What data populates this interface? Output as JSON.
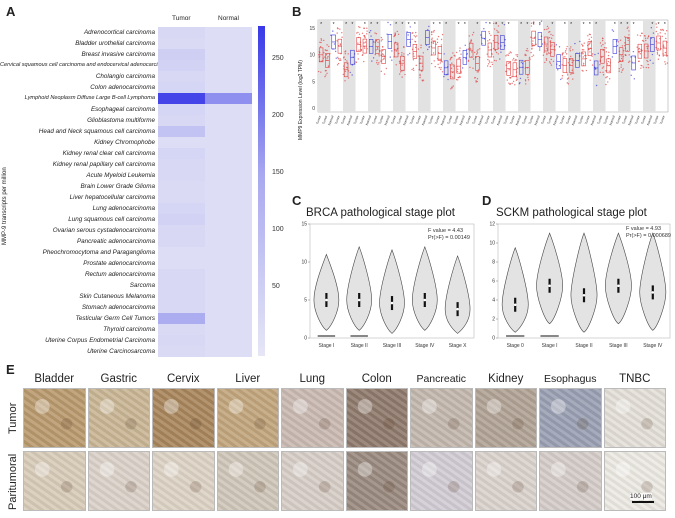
{
  "panels": {
    "a": "A",
    "b": "B",
    "c": "C",
    "d": "D",
    "e": "E"
  },
  "heatmap": {
    "columns": [
      "Tumor",
      "Normal"
    ],
    "ylabel": "MMP-9 transcripts per million",
    "colorbar_ticks": [
      "250",
      "200",
      "150",
      "100",
      "50"
    ],
    "rows": [
      {
        "label": "Adrenocortical carcinoma",
        "tumor": 25,
        "normal": 15
      },
      {
        "label": "Bladder urothelial carcinoma",
        "tumor": 20,
        "normal": 15
      },
      {
        "label": "Breast invasive carcinoma",
        "tumor": 40,
        "normal": 15
      },
      {
        "label": "Cervical squamous cell carcinoma and endocervical adenocarcinoma",
        "tumor": 35,
        "normal": 15
      },
      {
        "label": "Cholangio carcinoma",
        "tumor": 25,
        "normal": 15
      },
      {
        "label": "Colon adenocarcinoma",
        "tumor": 30,
        "normal": 15
      },
      {
        "label": "Lymphoid Neoplasm Diffuse Large B-cell Lymphoma",
        "tumor": 280,
        "normal": 150
      },
      {
        "label": "Esophageal carcinoma",
        "tumor": 30,
        "normal": 15
      },
      {
        "label": "Glioblastoma multiforme",
        "tumor": 25,
        "normal": 15
      },
      {
        "label": "Head and Neck squamous cell carcinoma",
        "tumor": 60,
        "normal": 15
      },
      {
        "label": "Kidney Chromophobe",
        "tumor": 15,
        "normal": 15
      },
      {
        "label": "Kidney renal clear cell carcinoma",
        "tumor": 30,
        "normal": 15
      },
      {
        "label": "Kidney renal papillary cell carcinoma",
        "tumor": 25,
        "normal": 15
      },
      {
        "label": "Acute Myeloid Leukemia",
        "tumor": 25,
        "normal": 15
      },
      {
        "label": "Brain Lower Grade Glioma",
        "tumor": 20,
        "normal": 15
      },
      {
        "label": "Liver hepatocellular carcinoma",
        "tumor": 20,
        "normal": 15
      },
      {
        "label": "Lung adenocarcinoma",
        "tumor": 30,
        "normal": 15
      },
      {
        "label": "Lung squamous cell carcinoma",
        "tumor": 35,
        "normal": 15
      },
      {
        "label": "Ovarian serous cystadenocarcinoma",
        "tumor": 25,
        "normal": 15
      },
      {
        "label": "Pancreatic adenocarcinoma",
        "tumor": 25,
        "normal": 15
      },
      {
        "label": "Pheochromocytoma and Paraganglioma",
        "tumor": 15,
        "normal": 15
      },
      {
        "label": "Prostate adenocarcinoma",
        "tumor": 15,
        "normal": 15
      },
      {
        "label": "Rectum adenocarcinoma",
        "tumor": 25,
        "normal": 15
      },
      {
        "label": "Sarcoma",
        "tumor": 25,
        "normal": 15
      },
      {
        "label": "Skin Cutaneous Melanoma",
        "tumor": 25,
        "normal": 15
      },
      {
        "label": "Stomach adenocarcinoma",
        "tumor": 25,
        "normal": 15
      },
      {
        "label": "Testicular Germ Cell Tumors",
        "tumor": 100,
        "normal": 15
      },
      {
        "label": "Thyroid carcinoma",
        "tumor": 20,
        "normal": 15
      },
      {
        "label": "Uterine Corpus Endometrial Carcinoma",
        "tumor": 25,
        "normal": 15
      },
      {
        "label": "Uterine Carcinosarcoma",
        "tumor": 20,
        "normal": 15
      }
    ]
  },
  "panel_b": {
    "ylabel": "MMP9 Expression Level (log2 TPM)",
    "yticks": [
      "15",
      "10",
      "5",
      "0"
    ],
    "n_groups": 56
  },
  "chart_data": [
    {
      "type": "violin",
      "title": "BRCA pathological stage plot",
      "stat_f": "F value = 4.43",
      "stat_p": "Pr(>F) = 0.00149",
      "categories": [
        "Stage I",
        "Stage II",
        "Stage III",
        "Stage IV",
        "Stage X"
      ],
      "medians": [
        5.0,
        5.0,
        4.6,
        5.0,
        3.8
      ],
      "ylim": [
        0,
        15
      ],
      "yticks": [
        "15",
        "10",
        "5",
        "0"
      ]
    },
    {
      "type": "violin",
      "title": "SCKM pathological stage plot",
      "stat_f": "F value = 4.93",
      "stat_p": "Pr(>F) = 0.000689",
      "categories": [
        "Stage 0",
        "Stage I",
        "Stage II",
        "Stage III",
        "Stage IV"
      ],
      "medians": [
        3.5,
        5.5,
        4.5,
        5.5,
        4.8
      ],
      "ylim": [
        0,
        12
      ],
      "yticks": [
        "12",
        "10",
        "8",
        "6",
        "4",
        "2",
        "0"
      ]
    }
  ],
  "ihc": {
    "tissues": [
      "Bladder",
      "Gastric",
      "Cervix",
      "Liver",
      "Lung",
      "Colon",
      "Pancreatic",
      "Kidney",
      "Esophagus",
      "TNBC"
    ],
    "rows": [
      "Tumor",
      "Paritumoral"
    ],
    "scale": "100 μm",
    "tumor_colors": [
      "#b99a6e",
      "#c8b594",
      "#a8865c",
      "#c2a57c",
      "#c9b9b2",
      "#8f7a6c",
      "#c3b7ad",
      "#b1a395",
      "#9aa0b2",
      "#e4dfd8"
    ],
    "peri_colors": [
      "#d8cbb8",
      "#dbd2c8",
      "#ddd3c5",
      "#cfc6b8",
      "#d6cdc6",
      "#9a8a80",
      "#d2ccd4",
      "#dad2cc",
      "#d4ccc8",
      "#ece9e3"
    ]
  }
}
